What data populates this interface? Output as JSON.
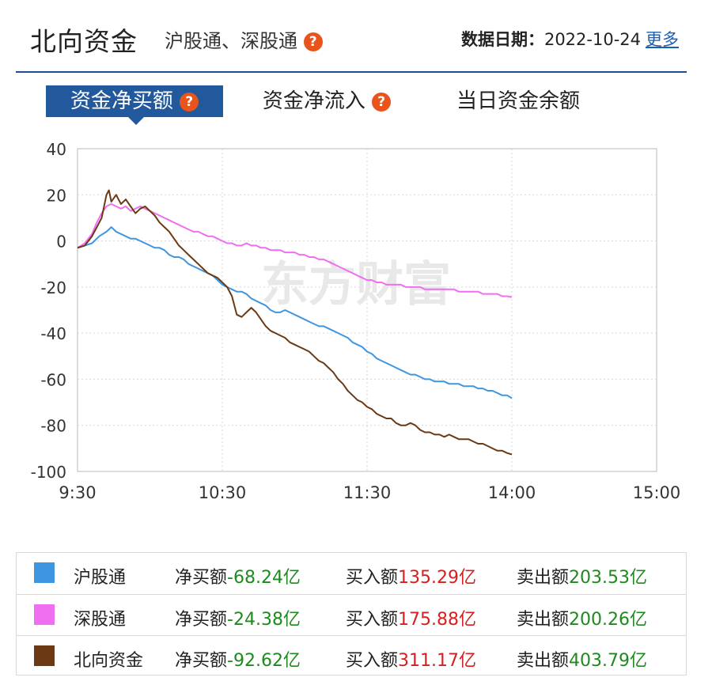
{
  "header": {
    "title": "北向资金",
    "subtitle": "沪股通、深股通",
    "date_label": "数据日期：",
    "date_value": "2022-10-24",
    "more_link": "更多",
    "help_glyph": "?"
  },
  "tabs": [
    {
      "label": "资金净买额",
      "active": true,
      "has_help": true
    },
    {
      "label": "资金净流入",
      "active": false,
      "has_help": true
    },
    {
      "label": "当日资金余额",
      "active": false,
      "has_help": false
    }
  ],
  "watermark": "东方财富",
  "chart_data": {
    "type": "line",
    "title": "资金净买额",
    "x_ticks": [
      "9:30",
      "10:30",
      "11:30",
      "14:00",
      "15:00"
    ],
    "y_ticks": [
      "40",
      "20",
      "0",
      "-20",
      "-40",
      "-60",
      "-80",
      "-100"
    ],
    "ylim": [
      -100,
      40
    ],
    "x_unit": "trading minutes from 9:30 (0-240)",
    "grid": true,
    "series": [
      {
        "name": "沪股通",
        "color": "#3f96e0",
        "points": [
          [
            0,
            -3
          ],
          [
            3,
            -2
          ],
          [
            6,
            -1
          ],
          [
            9,
            2
          ],
          [
            12,
            4
          ],
          [
            14,
            6
          ],
          [
            16,
            4
          ],
          [
            18,
            3
          ],
          [
            20,
            2
          ],
          [
            22,
            1
          ],
          [
            24,
            1
          ],
          [
            26,
            0
          ],
          [
            28,
            -1
          ],
          [
            30,
            -2
          ],
          [
            32,
            -3
          ],
          [
            34,
            -3
          ],
          [
            36,
            -4
          ],
          [
            38,
            -6
          ],
          [
            40,
            -7
          ],
          [
            42,
            -7
          ],
          [
            44,
            -8
          ],
          [
            46,
            -10
          ],
          [
            48,
            -11
          ],
          [
            50,
            -12
          ],
          [
            52,
            -13
          ],
          [
            54,
            -14
          ],
          [
            56,
            -15
          ],
          [
            58,
            -17
          ],
          [
            60,
            -19
          ],
          [
            62,
            -20
          ],
          [
            64,
            -21
          ],
          [
            66,
            -22
          ],
          [
            68,
            -22
          ],
          [
            70,
            -23
          ],
          [
            72,
            -25
          ],
          [
            74,
            -26
          ],
          [
            76,
            -27
          ],
          [
            78,
            -28
          ],
          [
            80,
            -30
          ],
          [
            82,
            -31
          ],
          [
            84,
            -31
          ],
          [
            86,
            -30
          ],
          [
            88,
            -31
          ],
          [
            90,
            -32
          ],
          [
            92,
            -33
          ],
          [
            94,
            -34
          ],
          [
            96,
            -35
          ],
          [
            98,
            -36
          ],
          [
            100,
            -37
          ],
          [
            102,
            -37
          ],
          [
            104,
            -38
          ],
          [
            106,
            -39
          ],
          [
            108,
            -40
          ],
          [
            110,
            -41
          ],
          [
            112,
            -42
          ],
          [
            114,
            -44
          ],
          [
            116,
            -45
          ],
          [
            118,
            -46
          ],
          [
            120,
            -48
          ],
          [
            122,
            -49
          ],
          [
            124,
            -51
          ],
          [
            126,
            -52
          ],
          [
            128,
            -53
          ],
          [
            130,
            -54
          ],
          [
            132,
            -55
          ],
          [
            134,
            -56
          ],
          [
            136,
            -57
          ],
          [
            138,
            -58
          ],
          [
            140,
            -58
          ],
          [
            142,
            -59
          ],
          [
            144,
            -60
          ],
          [
            146,
            -60
          ],
          [
            148,
            -61
          ],
          [
            150,
            -61
          ],
          [
            152,
            -61
          ],
          [
            154,
            -62
          ],
          [
            156,
            -62
          ],
          [
            158,
            -62
          ],
          [
            160,
            -63
          ],
          [
            162,
            -63
          ],
          [
            164,
            -63
          ],
          [
            166,
            -64
          ],
          [
            168,
            -64
          ],
          [
            170,
            -65
          ],
          [
            172,
            -65
          ],
          [
            174,
            -66
          ],
          [
            176,
            -67
          ],
          [
            178,
            -67
          ],
          [
            180,
            -68.24
          ]
        ]
      },
      {
        "name": "深股通",
        "color": "#f06ef0",
        "points": [
          [
            0,
            -3
          ],
          [
            3,
            -1
          ],
          [
            6,
            3
          ],
          [
            8,
            8
          ],
          [
            10,
            12
          ],
          [
            12,
            15
          ],
          [
            14,
            16
          ],
          [
            16,
            15
          ],
          [
            18,
            14
          ],
          [
            20,
            15
          ],
          [
            22,
            13
          ],
          [
            24,
            14
          ],
          [
            26,
            15
          ],
          [
            28,
            14
          ],
          [
            30,
            13
          ],
          [
            32,
            12
          ],
          [
            34,
            11
          ],
          [
            36,
            10
          ],
          [
            38,
            9
          ],
          [
            40,
            8
          ],
          [
            42,
            7
          ],
          [
            44,
            6
          ],
          [
            46,
            5
          ],
          [
            48,
            4
          ],
          [
            50,
            4
          ],
          [
            52,
            3
          ],
          [
            54,
            2
          ],
          [
            56,
            2
          ],
          [
            58,
            1
          ],
          [
            60,
            0
          ],
          [
            62,
            -1
          ],
          [
            64,
            -1
          ],
          [
            66,
            -2
          ],
          [
            68,
            -2
          ],
          [
            70,
            -1
          ],
          [
            72,
            -2
          ],
          [
            74,
            -2
          ],
          [
            76,
            -3
          ],
          [
            78,
            -3
          ],
          [
            80,
            -4
          ],
          [
            82,
            -4
          ],
          [
            84,
            -4
          ],
          [
            86,
            -5
          ],
          [
            88,
            -5
          ],
          [
            90,
            -5
          ],
          [
            92,
            -6
          ],
          [
            94,
            -6
          ],
          [
            96,
            -7
          ],
          [
            98,
            -7
          ],
          [
            100,
            -8
          ],
          [
            102,
            -8
          ],
          [
            104,
            -9
          ],
          [
            106,
            -10
          ],
          [
            108,
            -11
          ],
          [
            110,
            -12
          ],
          [
            112,
            -13
          ],
          [
            114,
            -14
          ],
          [
            116,
            -15
          ],
          [
            118,
            -16
          ],
          [
            120,
            -17
          ],
          [
            122,
            -17
          ],
          [
            124,
            -18
          ],
          [
            126,
            -18
          ],
          [
            128,
            -19
          ],
          [
            130,
            -19
          ],
          [
            132,
            -19
          ],
          [
            134,
            -19
          ],
          [
            136,
            -20
          ],
          [
            138,
            -20
          ],
          [
            140,
            -20
          ],
          [
            142,
            -20
          ],
          [
            144,
            -21
          ],
          [
            146,
            -21
          ],
          [
            148,
            -21
          ],
          [
            150,
            -21
          ],
          [
            152,
            -21
          ],
          [
            154,
            -21
          ],
          [
            156,
            -21
          ],
          [
            158,
            -22
          ],
          [
            160,
            -22
          ],
          [
            162,
            -22
          ],
          [
            164,
            -22
          ],
          [
            166,
            -22
          ],
          [
            168,
            -23
          ],
          [
            170,
            -23
          ],
          [
            172,
            -23
          ],
          [
            174,
            -23
          ],
          [
            176,
            -24
          ],
          [
            178,
            -24
          ],
          [
            180,
            -24.38
          ]
        ]
      },
      {
        "name": "北向资金",
        "color": "#6b3a14",
        "points": [
          [
            0,
            -3
          ],
          [
            3,
            -2
          ],
          [
            6,
            2
          ],
          [
            8,
            6
          ],
          [
            10,
            10
          ],
          [
            12,
            20
          ],
          [
            13,
            22
          ],
          [
            14,
            17
          ],
          [
            16,
            20
          ],
          [
            18,
            16
          ],
          [
            20,
            18
          ],
          [
            22,
            15
          ],
          [
            24,
            12
          ],
          [
            26,
            14
          ],
          [
            28,
            15
          ],
          [
            30,
            13
          ],
          [
            32,
            11
          ],
          [
            34,
            8
          ],
          [
            36,
            6
          ],
          [
            38,
            4
          ],
          [
            40,
            1
          ],
          [
            42,
            -2
          ],
          [
            44,
            -4
          ],
          [
            46,
            -6
          ],
          [
            48,
            -8
          ],
          [
            50,
            -10
          ],
          [
            52,
            -12
          ],
          [
            54,
            -14
          ],
          [
            56,
            -15
          ],
          [
            58,
            -16
          ],
          [
            60,
            -18
          ],
          [
            62,
            -20
          ],
          [
            64,
            -24
          ],
          [
            66,
            -32
          ],
          [
            68,
            -33
          ],
          [
            70,
            -31
          ],
          [
            72,
            -29
          ],
          [
            74,
            -31
          ],
          [
            76,
            -34
          ],
          [
            78,
            -37
          ],
          [
            80,
            -39
          ],
          [
            82,
            -40
          ],
          [
            84,
            -41
          ],
          [
            86,
            -42
          ],
          [
            88,
            -44
          ],
          [
            90,
            -45
          ],
          [
            92,
            -46
          ],
          [
            94,
            -47
          ],
          [
            96,
            -48
          ],
          [
            98,
            -50
          ],
          [
            100,
            -52
          ],
          [
            102,
            -53
          ],
          [
            104,
            -55
          ],
          [
            106,
            -57
          ],
          [
            108,
            -60
          ],
          [
            110,
            -62
          ],
          [
            112,
            -65
          ],
          [
            114,
            -67
          ],
          [
            116,
            -69
          ],
          [
            118,
            -70
          ],
          [
            120,
            -72
          ],
          [
            122,
            -73
          ],
          [
            124,
            -75
          ],
          [
            126,
            -76
          ],
          [
            128,
            -77
          ],
          [
            130,
            -77
          ],
          [
            132,
            -79
          ],
          [
            134,
            -80
          ],
          [
            136,
            -80
          ],
          [
            138,
            -79
          ],
          [
            140,
            -80
          ],
          [
            142,
            -82
          ],
          [
            144,
            -83
          ],
          [
            146,
            -83
          ],
          [
            148,
            -84
          ],
          [
            150,
            -84
          ],
          [
            152,
            -85
          ],
          [
            154,
            -84
          ],
          [
            156,
            -85
          ],
          [
            158,
            -86
          ],
          [
            160,
            -86
          ],
          [
            162,
            -86
          ],
          [
            164,
            -87
          ],
          [
            166,
            -88
          ],
          [
            168,
            -88
          ],
          [
            170,
            -89
          ],
          [
            172,
            -90
          ],
          [
            174,
            -91
          ],
          [
            176,
            -91
          ],
          [
            178,
            -92
          ],
          [
            180,
            -92.62
          ]
        ]
      }
    ]
  },
  "legend": [
    {
      "name": "沪股通",
      "color": "#3f96e0",
      "net_label": "净买额",
      "net_value": "-68.24亿",
      "buy_label": "买入额",
      "buy_value": "135.29亿",
      "sell_label": "卖出额",
      "sell_value": "203.53亿"
    },
    {
      "name": "深股通",
      "color": "#f06ef0",
      "net_label": "净买额",
      "net_value": "-24.38亿",
      "buy_label": "买入额",
      "buy_value": "175.88亿",
      "sell_label": "卖出额",
      "sell_value": "200.26亿"
    },
    {
      "name": "北向资金",
      "color": "#6b3a14",
      "net_label": "净买额",
      "net_value": "-92.62亿",
      "buy_label": "买入额",
      "buy_value": "311.17亿",
      "sell_label": "卖出额",
      "sell_value": "403.79亿"
    }
  ]
}
